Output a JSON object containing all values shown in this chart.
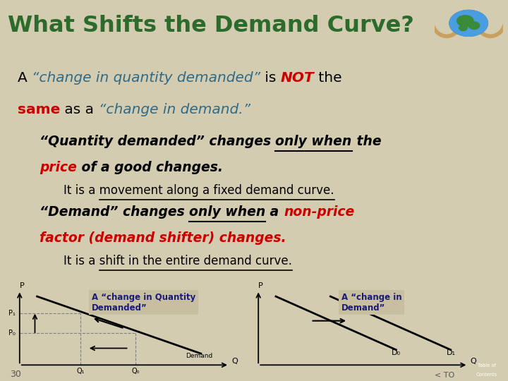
{
  "title": "What Shifts the Demand Curve?",
  "title_color": "#2d6b2d",
  "title_bg": "#d4ccb0",
  "slide_bg": "#d4ccb0",
  "content_bg": "#ffffff",
  "sep_color": "#a89870",
  "diagram_bg": "#c8bfa0",
  "line1_parts": [
    {
      "text": "A ",
      "bold": false,
      "italic": false,
      "color": "#000000"
    },
    {
      "text": "“change in quantity demanded”",
      "bold": false,
      "italic": true,
      "color": "#2e6b8a"
    },
    {
      "text": " is ",
      "bold": false,
      "italic": false,
      "color": "#000000"
    },
    {
      "text": "NOT",
      "bold": true,
      "italic": true,
      "color": "#cc0000"
    },
    {
      "text": " the",
      "bold": false,
      "italic": false,
      "color": "#000000"
    }
  ],
  "line2_parts": [
    {
      "text": "same",
      "bold": true,
      "italic": false,
      "color": "#cc0000"
    },
    {
      "text": " as a ",
      "bold": false,
      "italic": false,
      "color": "#000000"
    },
    {
      "text": "“change in demand.”",
      "bold": false,
      "italic": true,
      "color": "#2e6b8a"
    }
  ],
  "bullet1_parts": [
    {
      "text": "“Quantity demanded” changes ",
      "bold": true,
      "italic": true,
      "underline": false,
      "color": "#000000"
    },
    {
      "text": "only when",
      "bold": true,
      "italic": true,
      "underline": true,
      "color": "#000000"
    },
    {
      "text": " the",
      "bold": true,
      "italic": true,
      "underline": false,
      "color": "#000000"
    }
  ],
  "bullet1b_parts": [
    {
      "text": "price",
      "bold": true,
      "italic": true,
      "underline": false,
      "color": "#cc0000"
    },
    {
      "text": " of a good changes.",
      "bold": true,
      "italic": true,
      "underline": false,
      "color": "#000000"
    }
  ],
  "sub1": "It is a movement along a fixed demand curve.",
  "sub1_underline": "movement along a fixed demand curve.",
  "bullet2_parts": [
    {
      "text": "“Demand” changes ",
      "bold": true,
      "italic": true,
      "underline": false,
      "color": "#000000"
    },
    {
      "text": "only when",
      "bold": true,
      "italic": true,
      "underline": true,
      "color": "#000000"
    },
    {
      "text": " a ",
      "bold": true,
      "italic": true,
      "underline": false,
      "color": "#000000"
    },
    {
      "text": "non-price",
      "bold": true,
      "italic": true,
      "underline": false,
      "color": "#cc0000"
    }
  ],
  "bullet2b_parts": [
    {
      "text": "factor (demand shifter) changes.",
      "bold": true,
      "italic": true,
      "underline": false,
      "color": "#cc0000"
    }
  ],
  "sub2": "It is a shift in the entire demand curve.",
  "sub2_underline": "shift in the entire demand curve.",
  "diagram1_label": "A “change in Quantity\nDemanded”",
  "diagram2_label": "A “change in\nDemand”",
  "footer_num": "30",
  "footer_nav": "< TO"
}
